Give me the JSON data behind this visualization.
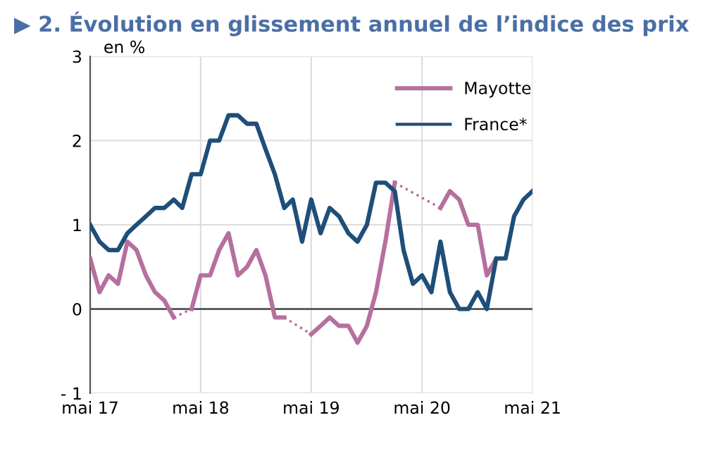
{
  "chart_data": {
    "type": "line",
    "title": "▶ 2. Évolution en glissement annuel de l’indice des prix",
    "ylabel": "en %",
    "x": [
      "2017-05",
      "2017-06",
      "2017-07",
      "2017-08",
      "2017-09",
      "2017-10",
      "2017-11",
      "2017-12",
      "2018-01",
      "2018-02",
      "2018-03",
      "2018-04",
      "2018-05",
      "2018-06",
      "2018-07",
      "2018-08",
      "2018-09",
      "2018-10",
      "2018-11",
      "2018-12",
      "2019-01",
      "2019-02",
      "2019-03",
      "2019-04",
      "2019-05",
      "2019-06",
      "2019-07",
      "2019-08",
      "2019-09",
      "2019-10",
      "2019-11",
      "2019-12",
      "2020-01",
      "2020-02",
      "2020-03",
      "2020-04",
      "2020-05",
      "2020-06",
      "2020-07",
      "2020-08",
      "2020-09",
      "2020-10",
      "2020-11",
      "2020-12",
      "2021-01",
      "2021-02",
      "2021-03",
      "2021-04",
      "2021-05"
    ],
    "series": [
      {
        "name": "Mayotte",
        "color": "#b5709e",
        "values": [
          0.6,
          0.2,
          0.4,
          0.3,
          0.8,
          0.7,
          0.4,
          0.2,
          0.1,
          -0.1,
          null,
          0,
          0.4,
          0.4,
          0.7,
          0.9,
          0.4,
          0.5,
          0.7,
          0.4,
          -0.1,
          -0.1,
          null,
          null,
          -0.3,
          -0.2,
          -0.1,
          -0.2,
          -0.2,
          -0.4,
          -0.2,
          0.2,
          0.8,
          1.5,
          null,
          null,
          null,
          null,
          1.2,
          1.4,
          1.3,
          1.0,
          1.0,
          0.4,
          0.6,
          null,
          null,
          null,
          null
        ]
      },
      {
        "name": "France*",
        "color": "#1f4e79",
        "values": [
          1.0,
          0.8,
          0.7,
          0.7,
          0.9,
          1.0,
          1.1,
          1.2,
          1.2,
          1.3,
          1.2,
          1.6,
          1.6,
          2.0,
          2.0,
          2.3,
          2.3,
          2.2,
          2.2,
          1.9,
          1.6,
          1.2,
          1.3,
          0.8,
          1.3,
          0.9,
          1.2,
          1.1,
          0.9,
          0.8,
          1.0,
          1.5,
          1.5,
          1.4,
          0.7,
          0.3,
          0.4,
          0.2,
          0.8,
          0.2,
          0,
          0,
          0.2,
          0,
          0.6,
          0.6,
          1.1,
          1.3,
          1.4
        ]
      }
    ],
    "xlim": [
      "2017-05",
      "2021-05"
    ],
    "xticks": [
      {
        "value": "2017-05",
        "label": "mai 17"
      },
      {
        "value": "2018-05",
        "label": "mai 18"
      },
      {
        "value": "2019-05",
        "label": "mai 19"
      },
      {
        "value": "2020-05",
        "label": "mai 20"
      },
      {
        "value": "2021-05",
        "label": "mai 21"
      }
    ],
    "ylim": [
      -1,
      3
    ],
    "yticks": [
      {
        "value": -1,
        "label": "- 1"
      },
      0,
      1,
      2,
      3
    ],
    "ref_lines": [
      {
        "axis": "y",
        "value": 0,
        "label": null,
        "color": "#444444"
      }
    ],
    "grid": true,
    "legend": "top right",
    "line_style": "solid",
    "marker": "none"
  }
}
